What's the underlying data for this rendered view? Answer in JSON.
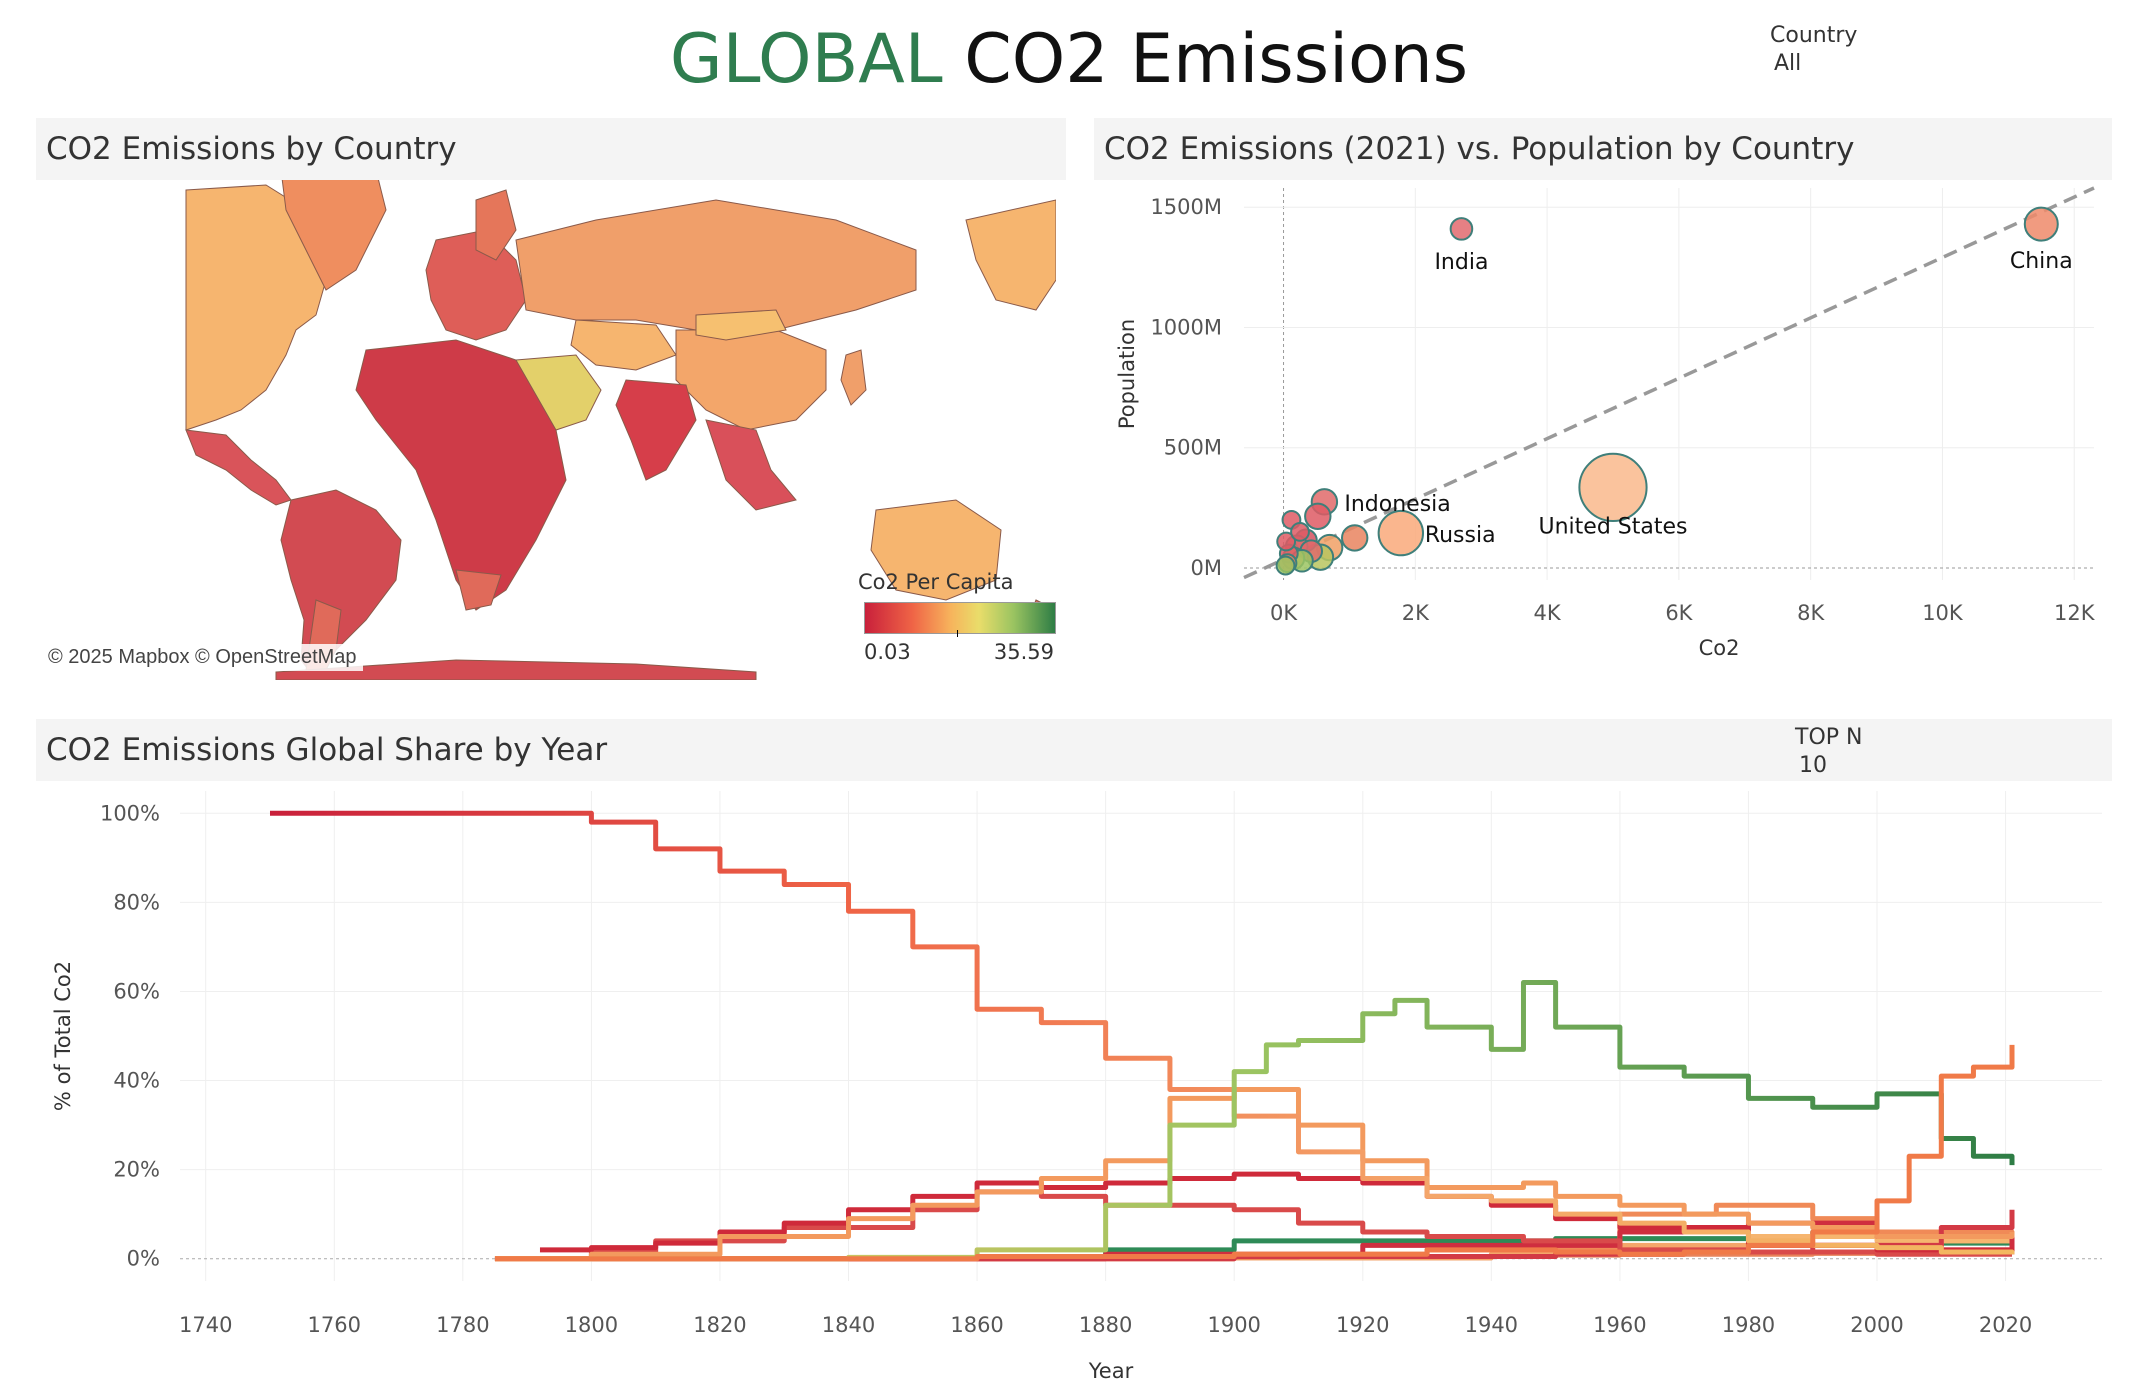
{
  "header": {
    "title_accent": "GLOBAL",
    "title_rest": " CO2 Emissions"
  },
  "filters": {
    "country": {
      "label": "Country",
      "value": "All"
    },
    "top_n": {
      "label": "TOP N",
      "value": "10"
    }
  },
  "panels": {
    "map": {
      "title": "CO2 Emissions by Country",
      "credit": "© 2025 Mapbox © OpenStreetMap",
      "legend_title": "Co2 Per Capita",
      "legend_min": "0.03",
      "legend_max": "35.59",
      "colors": {
        "low": "#c9203b",
        "mid": "#f7b35c",
        "high": "#2e7d45"
      }
    },
    "scatter": {
      "title": "CO2 Emissions (2021) vs. Population by Country"
    },
    "share": {
      "title": "CO2 Emissions Global Share by Year"
    }
  },
  "chart_data": [
    {
      "type": "scatter",
      "xlabel": "Co2",
      "ylabel": "Population",
      "xlim": [
        -600,
        12300
      ],
      "ylim": [
        -50,
        1580
      ],
      "x_ticks": [
        "0K",
        "2K",
        "4K",
        "6K",
        "8K",
        "10K",
        "12K"
      ],
      "y_ticks": [
        "0M",
        "500M",
        "1000M",
        "1500M"
      ],
      "trend_line": {
        "from": [
          -600,
          -40
        ],
        "to": [
          12300,
          1580
        ]
      },
      "points": [
        {
          "label": "China",
          "co2": 11500,
          "pop": 1430,
          "size": 5,
          "color": "#ef8a6a"
        },
        {
          "label": "India",
          "co2": 2700,
          "pop": 1410,
          "size": 2,
          "color": "#e26a6f"
        },
        {
          "label": "United States",
          "co2": 5000,
          "pop": 335,
          "size": 14,
          "color": "#f9b98c"
        },
        {
          "label": "Russia",
          "co2": 1780,
          "pop": 145,
          "size": 8,
          "color": "#f9a97a"
        },
        {
          "label": "Indonesia",
          "co2": 620,
          "pop": 275,
          "size": 3,
          "color": "#e06a6a"
        },
        {
          "label": "",
          "co2": 520,
          "pop": 215,
          "size": 3,
          "color": "#de5a64"
        },
        {
          "label": "",
          "co2": 1080,
          "pop": 125,
          "size": 3,
          "color": "#e9845f"
        },
        {
          "label": "",
          "co2": 700,
          "pop": 85,
          "size": 3,
          "color": "#f0a065"
        },
        {
          "label": "",
          "co2": 560,
          "pop": 45,
          "size": 3,
          "color": "#b9c55f"
        },
        {
          "label": "",
          "co2": 340,
          "pop": 115,
          "size": 2,
          "color": "#d6505f"
        },
        {
          "label": "",
          "co2": 200,
          "pop": 90,
          "size": 2,
          "color": "#e06a6a"
        },
        {
          "label": "",
          "co2": 420,
          "pop": 70,
          "size": 2,
          "color": "#e06a6a"
        },
        {
          "label": "",
          "co2": 150,
          "pop": 40,
          "size": 2,
          "color": "#f4a76c"
        },
        {
          "label": "",
          "co2": 280,
          "pop": 30,
          "size": 2,
          "color": "#9bc461"
        },
        {
          "label": "",
          "co2": 80,
          "pop": 60,
          "size": 1,
          "color": "#de5a64"
        },
        {
          "label": "",
          "co2": 40,
          "pop": 110,
          "size": 1,
          "color": "#de5a64"
        },
        {
          "label": "",
          "co2": 120,
          "pop": 200,
          "size": 1,
          "color": "#de5a64"
        },
        {
          "label": "",
          "co2": 60,
          "pop": 20,
          "size": 1,
          "color": "#e9845f"
        },
        {
          "label": "",
          "co2": 250,
          "pop": 150,
          "size": 1,
          "color": "#de5a64"
        },
        {
          "label": "",
          "co2": 30,
          "pop": 10,
          "size": 1,
          "color": "#9bc461"
        }
      ]
    },
    {
      "type": "line",
      "xlabel": "Year",
      "ylabel": "% of Total Co2",
      "xlim": [
        1736,
        2035
      ],
      "ylim": [
        -5,
        105
      ],
      "x_ticks": [
        1740,
        1760,
        1780,
        1800,
        1820,
        1840,
        1860,
        1880,
        1900,
        1920,
        1940,
        1960,
        1980,
        2000,
        2020
      ],
      "y_ticks": [
        0,
        20,
        40,
        60,
        80,
        100
      ],
      "series": [
        {
          "color": "#2e8b57",
          "values": [
            [
              1785,
              0
            ],
            [
              1860,
              0.3
            ],
            [
              1880,
              2
            ],
            [
              1900,
              4
            ],
            [
              1950,
              4.5
            ],
            [
              1990,
              6
            ],
            [
              2010,
              3.5
            ],
            [
              2021,
              3
            ]
          ]
        },
        {
          "color": "#e8835a",
          "values": [
            [
              1785,
              0
            ],
            [
              1880,
              0
            ],
            [
              1900,
              0.2
            ],
            [
              1940,
              0.8
            ],
            [
              1960,
              1
            ],
            [
              1980,
              1
            ],
            [
              1990,
              1.2
            ],
            [
              2000,
              2.5
            ],
            [
              2010,
              4
            ],
            [
              2021,
              4
            ]
          ]
        },
        {
          "color": "#f4a66a",
          "values": [
            [
              1785,
              0
            ],
            [
              1900,
              0.2
            ],
            [
              1940,
              1
            ],
            [
              1960,
              3
            ],
            [
              1980,
              3
            ],
            [
              2000,
              3
            ],
            [
              2010,
              2
            ],
            [
              2021,
              1
            ]
          ]
        },
        {
          "color": "#f6b56f",
          "values": [
            [
              1785,
              0
            ],
            [
              1860,
              0.2
            ],
            [
              1900,
              1
            ],
            [
              1930,
              2
            ],
            [
              1960,
              6
            ],
            [
              1980,
              5
            ],
            [
              2000,
              4
            ],
            [
              2021,
              2
            ]
          ]
        },
        {
          "color": "#f08a57",
          "values": [
            [
              1785,
              0
            ],
            [
              1880,
              0.3
            ],
            [
              1910,
              1
            ],
            [
              1930,
              2
            ],
            [
              1960,
              10
            ],
            [
              1975,
              12
            ],
            [
              1990,
              9
            ],
            [
              2000,
              6
            ],
            [
              2021,
              5
            ]
          ]
        },
        {
          "color": "#cf2e3f",
          "values": [
            [
              1785,
              0
            ],
            [
              1880,
              1
            ],
            [
              1920,
              3
            ],
            [
              1940,
              3
            ],
            [
              1960,
              6
            ],
            [
              1980,
              8
            ],
            [
              2000,
              5
            ],
            [
              2021,
              1
            ]
          ]
        },
        {
          "color": "#d33a45",
          "values": [
            [
              1785,
              0
            ],
            [
              1900,
              0.5
            ],
            [
              1930,
              0.5
            ],
            [
              1950,
              1
            ],
            [
              1970,
              1.5
            ],
            [
              1990,
              3
            ],
            [
              2010,
              7
            ],
            [
              2021,
              11
            ]
          ]
        },
        {
          "color": "#d94a4a",
          "values": [
            [
              1785,
              0
            ],
            [
              1800,
              1.5
            ],
            [
              1810,
              4
            ],
            [
              1830,
              7
            ],
            [
              1850,
              11
            ],
            [
              1860,
              15
            ],
            [
              1870,
              14
            ],
            [
              1880,
              12
            ],
            [
              1900,
              11
            ],
            [
              1910,
              8
            ],
            [
              1920,
              6
            ],
            [
              1930,
              5
            ],
            [
              1945,
              4
            ],
            [
              1960,
              2
            ],
            [
              1980,
              1.5
            ],
            [
              2000,
              1
            ],
            [
              2021,
              1
            ]
          ]
        },
        {
          "color": "#cf2a3a",
          "values": [
            [
              1792,
              2
            ],
            [
              1800,
              2.5
            ],
            [
              1810,
              3.5
            ],
            [
              1820,
              6
            ],
            [
              1830,
              8
            ],
            [
              1840,
              11
            ],
            [
              1850,
              14
            ],
            [
              1860,
              17
            ],
            [
              1870,
              16
            ],
            [
              1880,
              17
            ],
            [
              1890,
              18
            ],
            [
              1900,
              19
            ],
            [
              1910,
              18
            ],
            [
              1920,
              17
            ],
            [
              1930,
              14
            ],
            [
              1940,
              12
            ],
            [
              1950,
              9
            ],
            [
              1960,
              7
            ],
            [
              1980,
              3
            ],
            [
              2000,
              2
            ],
            [
              2021,
              1.5
            ]
          ]
        },
        {
          "color": "#f39a5e",
          "values": [
            [
              1785,
              0
            ],
            [
              1800,
              1
            ],
            [
              1820,
              5
            ],
            [
              1840,
              9
            ],
            [
              1850,
              12
            ],
            [
              1860,
              15
            ],
            [
              1870,
              18
            ],
            [
              1880,
              22
            ],
            [
              1890,
              36
            ],
            [
              1900,
              38
            ],
            [
              1910,
              30
            ],
            [
              1920,
              22
            ],
            [
              1930,
              16
            ],
            [
              1945,
              17
            ],
            [
              1950,
              14
            ],
            [
              1960,
              12
            ],
            [
              1970,
              10
            ],
            [
              1980,
              8
            ],
            [
              1990,
              7
            ],
            [
              2000,
              5
            ],
            [
              2010,
              5
            ],
            [
              2021,
              6
            ]
          ]
        },
        {
          "color": "#e0474b",
          "values": [
            [
              1750,
              100
            ],
            [
              1790,
              100
            ],
            [
              1800,
              98
            ],
            [
              1810,
              92
            ],
            [
              1820,
              87
            ],
            [
              1830,
              84
            ],
            [
              1840,
              78
            ],
            [
              1850,
              70
            ],
            [
              1860,
              56
            ],
            [
              1870,
              53
            ],
            [
              1880,
              45
            ],
            [
              1890,
              38
            ],
            [
              1900,
              32
            ],
            [
              1910,
              24
            ],
            [
              1920,
              18
            ],
            [
              1930,
              14
            ],
            [
              1940,
              13
            ],
            [
              1950,
              10
            ],
            [
              1960,
              8
            ],
            [
              1970,
              6
            ],
            [
              1980,
              4
            ],
            [
              1990,
              3
            ],
            [
              2000,
              2.5
            ],
            [
              2010,
              1.5
            ],
            [
              2021,
              1
            ]
          ],
          "gradient": [
            "#c9203b",
            "#ef6446",
            "#f4a66a",
            "#f3b85f"
          ]
        },
        {
          "color": "#a7c25e",
          "values": [
            [
              1785,
              0
            ],
            [
              1820,
              0
            ],
            [
              1840,
              0.3
            ],
            [
              1860,
              2
            ],
            [
              1880,
              12
            ],
            [
              1890,
              30
            ],
            [
              1900,
              42
            ],
            [
              1905,
              48
            ],
            [
              1910,
              49
            ],
            [
              1920,
              55
            ],
            [
              1925,
              58
            ],
            [
              1930,
              52
            ],
            [
              1940,
              47
            ],
            [
              1945,
              62
            ],
            [
              1950,
              52
            ],
            [
              1960,
              43
            ],
            [
              1970,
              41
            ],
            [
              1980,
              36
            ],
            [
              1990,
              34
            ],
            [
              2000,
              37
            ],
            [
              2010,
              27
            ],
            [
              2015,
              23
            ],
            [
              2021,
              21
            ]
          ],
          "gradient": [
            "#f3c45f",
            "#9bc461",
            "#2e7d45"
          ]
        },
        {
          "color": "#f07a48",
          "values": [
            [
              1785,
              0
            ],
            [
              1860,
              0.5
            ],
            [
              1900,
              1
            ],
            [
              1930,
              2
            ],
            [
              1950,
              1.5
            ],
            [
              1960,
              1
            ],
            [
              1970,
              1.5
            ],
            [
              1980,
              3
            ],
            [
              1990,
              6
            ],
            [
              2000,
              13
            ],
            [
              2005,
              23
            ],
            [
              2010,
              41
            ],
            [
              2015,
              43
            ],
            [
              2021,
              48
            ]
          ]
        }
      ]
    }
  ]
}
